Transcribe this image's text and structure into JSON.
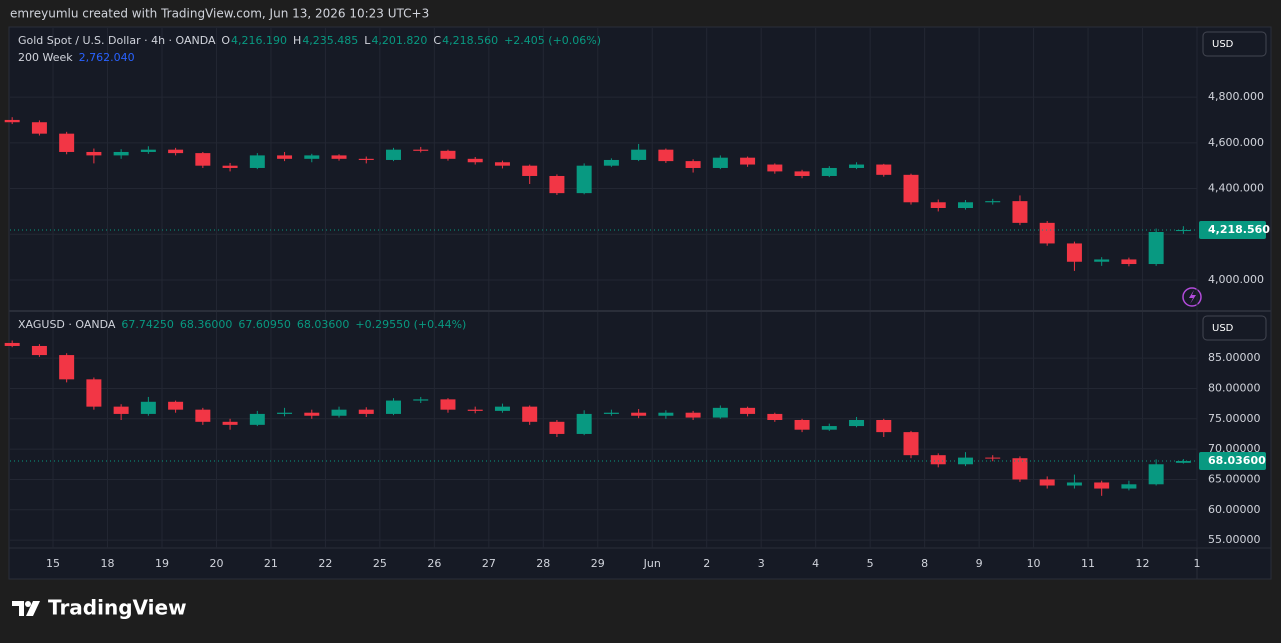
{
  "header": {
    "credit": "emreyumlu created with TradingView.com, Jun 13, 2026 10:23 UTC+3"
  },
  "footer": {
    "brand": "TradingView"
  },
  "chart_data": [
    {
      "type": "candlestick",
      "currency": "USD",
      "legend": {
        "symbol": "Gold Spot / U.S. Dollar · 4h · OANDA",
        "fields": [
          {
            "key": "O",
            "value": "4,216.190"
          },
          {
            "key": "H",
            "value": "4,235.485"
          },
          {
            "key": "L",
            "value": "4,201.820"
          },
          {
            "key": "C",
            "value": "4,218.560"
          }
        ],
        "change": "+2.405 (+0.06%)"
      },
      "indicator": {
        "name": "200 Week",
        "value": "2,762.040"
      },
      "up_color": "#089981",
      "down_color": "#f23645",
      "xlim": [
        -0.79,
        21
      ],
      "ylim": [
        3869,
        5102
      ],
      "yticks": [
        {
          "value": 4000,
          "label": "4,000.000"
        },
        {
          "value": 4200,
          "label": "4,200.000"
        },
        {
          "value": 4400,
          "label": "4,400.000"
        },
        {
          "value": 4600,
          "label": "4,600.000"
        },
        {
          "value": 4800,
          "label": "4,800.000"
        }
      ],
      "last_price": {
        "value": 4218.56,
        "label": "4,218.560"
      },
      "x": [
        -0.75,
        -0.25,
        0.25,
        0.75,
        1.25,
        1.75,
        2.25,
        2.75,
        3.25,
        3.75,
        4.25,
        4.75,
        5.25,
        5.75,
        6.25,
        6.75,
        7.25,
        7.75,
        8.25,
        8.75,
        9.25,
        9.75,
        10.25,
        10.75,
        11.25,
        11.75,
        12.25,
        12.75,
        13.25,
        13.75,
        14.25,
        14.75,
        15.25,
        15.75,
        16.25,
        16.75,
        17.25,
        17.75,
        18.25,
        18.75,
        19.25,
        19.75,
        20.25,
        20.75
      ],
      "open": [
        4700,
        4690,
        4640,
        4560,
        4545,
        4560,
        4570,
        4555,
        4500,
        4490,
        4545,
        4530,
        4545,
        4530,
        4525,
        4570,
        4565,
        4530,
        4515,
        4500,
        4455,
        4380,
        4500,
        4525,
        4570,
        4520,
        4490,
        4535,
        4505,
        4475,
        4455,
        4490,
        4505,
        4460,
        4340,
        4315,
        4340,
        4345,
        4250,
        4160,
        4080,
        4090,
        4070,
        4216.19
      ],
      "high": [
        4712,
        4698,
        4648,
        4575,
        4572,
        4585,
        4578,
        4560,
        4512,
        4555,
        4560,
        4552,
        4550,
        4540,
        4578,
        4582,
        4570,
        4538,
        4522,
        4505,
        4462,
        4510,
        4532,
        4595,
        4575,
        4528,
        4545,
        4540,
        4510,
        4482,
        4498,
        4515,
        4508,
        4465,
        4352,
        4350,
        4355,
        4370,
        4258,
        4168,
        4100,
        4098,
        4225,
        4235.485
      ],
      "low": [
        4682,
        4632,
        4550,
        4510,
        4530,
        4552,
        4545,
        4490,
        4475,
        4485,
        4520,
        4515,
        4522,
        4510,
        4520,
        4558,
        4522,
        4505,
        4488,
        4420,
        4372,
        4375,
        4495,
        4520,
        4512,
        4470,
        4485,
        4495,
        4465,
        4445,
        4450,
        4485,
        4452,
        4330,
        4300,
        4308,
        4330,
        4240,
        4150,
        4040,
        4062,
        4060,
        4062,
        4201.82
      ],
      "close": [
        4690,
        4640,
        4560,
        4545,
        4560,
        4570,
        4555,
        4500,
        4490,
        4545,
        4530,
        4545,
        4530,
        4525,
        4570,
        4565,
        4530,
        4515,
        4500,
        4455,
        4380,
        4500,
        4525,
        4570,
        4520,
        4490,
        4535,
        4505,
        4475,
        4455,
        4490,
        4505,
        4460,
        4340,
        4315,
        4340,
        4345,
        4250,
        4160,
        4080,
        4090,
        4070,
        4210,
        4218.56
      ]
    },
    {
      "type": "candlestick",
      "currency": "USD",
      "legend": {
        "symbol": "XAGUSD · OANDA",
        "fields": [
          {
            "value": "67.74250"
          },
          {
            "value": "68.36000"
          },
          {
            "value": "67.60950"
          },
          {
            "value": "68.03600"
          }
        ],
        "change": "+0.29550 (+0.44%)"
      },
      "up_color": "#089981",
      "down_color": "#f23645",
      "xlim": [
        -0.79,
        21
      ],
      "ylim": [
        53.7,
        92.6
      ],
      "xticks": [
        {
          "value": 0,
          "label": "15"
        },
        {
          "value": 1,
          "label": "18"
        },
        {
          "value": 2,
          "label": "19"
        },
        {
          "value": 3,
          "label": "20"
        },
        {
          "value": 4,
          "label": "21"
        },
        {
          "value": 5,
          "label": "22"
        },
        {
          "value": 6,
          "label": "25"
        },
        {
          "value": 7,
          "label": "26"
        },
        {
          "value": 8,
          "label": "27"
        },
        {
          "value": 9,
          "label": "28"
        },
        {
          "value": 10,
          "label": "29"
        },
        {
          "value": 11,
          "label": "Jun"
        },
        {
          "value": 12,
          "label": "2"
        },
        {
          "value": 13,
          "label": "3"
        },
        {
          "value": 14,
          "label": "4"
        },
        {
          "value": 15,
          "label": "5"
        },
        {
          "value": 16,
          "label": "8"
        },
        {
          "value": 17,
          "label": "9"
        },
        {
          "value": 18,
          "label": "10"
        },
        {
          "value": 19,
          "label": "11"
        },
        {
          "value": 20,
          "label": "12"
        },
        {
          "value": 21,
          "label": "1"
        }
      ],
      "yticks": [
        {
          "value": 55,
          "label": "55.00000"
        },
        {
          "value": 60,
          "label": "60.00000"
        },
        {
          "value": 65,
          "label": "65.00000"
        },
        {
          "value": 70,
          "label": "70.00000"
        },
        {
          "value": 75,
          "label": "75.00000"
        },
        {
          "value": 80,
          "label": "80.00000"
        },
        {
          "value": 85,
          "label": "85.00000"
        }
      ],
      "last_price": {
        "value": 68.036,
        "label": "68.03600"
      },
      "x": [
        -0.75,
        -0.25,
        0.25,
        0.75,
        1.25,
        1.75,
        2.25,
        2.75,
        3.25,
        3.75,
        4.25,
        4.75,
        5.25,
        5.75,
        6.25,
        6.75,
        7.25,
        7.75,
        8.25,
        8.75,
        9.25,
        9.75,
        10.25,
        10.75,
        11.25,
        11.75,
        12.25,
        12.75,
        13.25,
        13.75,
        14.25,
        14.75,
        15.25,
        15.75,
        16.25,
        16.75,
        17.25,
        17.75,
        18.25,
        18.75,
        19.25,
        19.75,
        20.25,
        20.75
      ],
      "open": [
        87.5,
        87.0,
        85.5,
        81.5,
        77.0,
        75.8,
        77.8,
        76.5,
        74.5,
        74.0,
        75.8,
        76.0,
        75.5,
        76.5,
        75.8,
        78.0,
        78.2,
        76.5,
        76.3,
        77.0,
        74.5,
        72.5,
        75.8,
        76.0,
        75.5,
        76.0,
        75.2,
        76.8,
        75.8,
        74.8,
        73.2,
        73.8,
        74.8,
        72.8,
        69.0,
        67.5,
        68.6,
        68.5,
        65.0,
        64.0,
        64.5,
        63.5,
        64.2,
        67.7425
      ],
      "high": [
        87.9,
        87.3,
        85.8,
        81.8,
        77.4,
        78.6,
        78.0,
        76.8,
        75.0,
        76.3,
        76.8,
        76.5,
        77.0,
        76.9,
        78.4,
        78.6,
        78.4,
        77.0,
        77.5,
        77.2,
        74.8,
        76.4,
        76.5,
        76.6,
        76.4,
        76.3,
        77.2,
        77.0,
        76.0,
        75.0,
        74.2,
        75.3,
        75.0,
        73.0,
        69.3,
        69.5,
        69.0,
        68.8,
        65.5,
        65.8,
        64.8,
        64.8,
        68.3,
        68.36
      ],
      "low": [
        86.8,
        85.2,
        81.0,
        76.5,
        74.8,
        75.5,
        76.0,
        74.0,
        73.2,
        73.8,
        75.4,
        75.0,
        75.2,
        75.3,
        75.6,
        77.6,
        76.0,
        75.9,
        76.0,
        74.0,
        72.0,
        72.3,
        75.5,
        75.1,
        75.0,
        74.8,
        75.0,
        75.4,
        74.5,
        72.8,
        73.0,
        73.6,
        72.0,
        68.5,
        67.0,
        67.2,
        68.0,
        64.6,
        63.5,
        63.5,
        62.3,
        63.2,
        64.0,
        67.6095
      ],
      "close": [
        87.0,
        85.5,
        81.5,
        77.0,
        75.8,
        77.8,
        76.5,
        74.5,
        74.0,
        75.8,
        76.0,
        75.5,
        76.5,
        75.8,
        78.0,
        78.2,
        76.5,
        76.3,
        77.0,
        74.5,
        72.5,
        75.8,
        76.0,
        75.5,
        76.0,
        75.2,
        76.8,
        75.8,
        74.8,
        73.2,
        73.8,
        74.8,
        72.8,
        69.0,
        67.5,
        68.6,
        68.5,
        65.0,
        64.0,
        64.5,
        63.5,
        64.2,
        67.5,
        68.036
      ]
    }
  ]
}
